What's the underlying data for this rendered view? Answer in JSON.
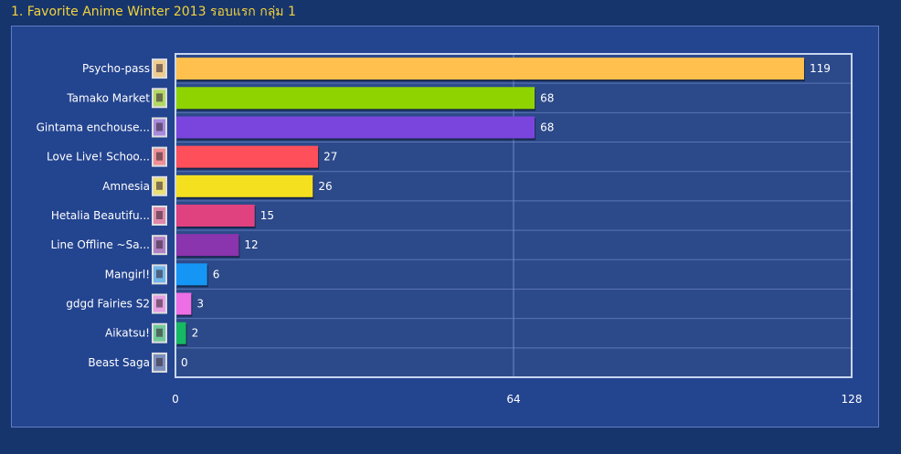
{
  "page": {
    "title": "1. Favorite Anime Winter 2013 รอบแรก กลุ่ม 1"
  },
  "chart_data": {
    "type": "bar",
    "orientation": "horizontal",
    "title": "1. Favorite Anime Winter 2013 รอบแรก กลุ่ม 1",
    "categories": [
      "Psycho-pass",
      "Tamako Market",
      "Gintama enchouse...",
      "Love Live! Schoo...",
      "Amnesia",
      "Hetalia Beautifu...",
      "Line Offline ~Sa...",
      "Mangirl!",
      "gdgd Fairies S2",
      "Aikatsu!",
      "Beast Saga"
    ],
    "values": [
      119,
      68,
      68,
      27,
      26,
      15,
      12,
      6,
      3,
      2,
      0
    ],
    "bar_colors": [
      "#ffc04d",
      "#8fd400",
      "#7a45dd",
      "#ff4f5a",
      "#f5e020",
      "#e0417f",
      "#8a34ae",
      "#1596f5",
      "#ee6ee5",
      "#17b863",
      "#2a4da0"
    ],
    "xlim": [
      0,
      128
    ],
    "x_ticks": [
      "0",
      "64",
      "128"
    ],
    "grid": true,
    "xlabel": "",
    "ylabel": ""
  }
}
